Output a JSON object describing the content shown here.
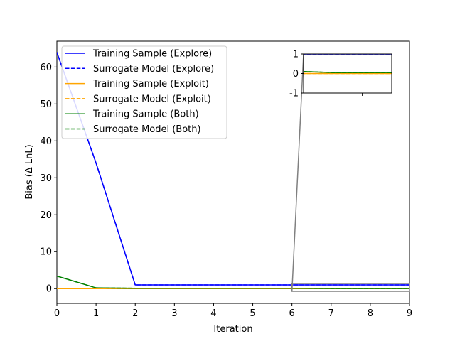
{
  "chart_data": {
    "type": "line",
    "title": "",
    "xlabel": "Iteration",
    "ylabel": "Bias (Δ LnL)",
    "xlim": [
      0,
      9
    ],
    "ylim": [
      -4,
      67
    ],
    "xticks": [
      0,
      1,
      2,
      3,
      4,
      5,
      6,
      7,
      8,
      9
    ],
    "yticks": [
      0,
      10,
      20,
      30,
      40,
      50,
      60
    ],
    "legend_position": "top-left",
    "x": [
      0,
      1,
      2,
      3,
      4,
      5,
      6,
      7,
      8,
      9
    ],
    "series": [
      {
        "name": "Training Sample (Explore)",
        "color": "#0000ff",
        "style": "solid",
        "values": [
          64,
          34,
          1,
          1,
          1,
          1,
          1,
          1,
          1,
          1
        ]
      },
      {
        "name": "Surrogate Model (Explore)",
        "color": "#0000ff",
        "style": "dashed",
        "values": [
          64,
          34,
          1,
          1,
          1,
          1,
          1,
          1,
          1,
          1
        ]
      },
      {
        "name": "Training Sample (Exploit)",
        "color": "#ffa500",
        "style": "solid",
        "values": [
          0,
          0,
          0,
          0,
          0,
          0,
          0,
          0,
          0,
          0
        ]
      },
      {
        "name": "Surrogate Model (Exploit)",
        "color": "#ffa500",
        "style": "dashed",
        "values": [
          0,
          0,
          0,
          0,
          0,
          0,
          0,
          0,
          0,
          0
        ]
      },
      {
        "name": "Training Sample (Both)",
        "color": "#008000",
        "style": "solid",
        "values": [
          3.4,
          0.2,
          0.1,
          0.1,
          0.1,
          0.1,
          0.1,
          0.05,
          0.05,
          0.05
        ]
      },
      {
        "name": "Surrogate Model (Both)",
        "color": "#008000",
        "style": "dashed",
        "values": [
          3.4,
          0.2,
          0.1,
          0.1,
          0.1,
          0.1,
          0.1,
          0.05,
          0.05,
          0.05
        ]
      }
    ],
    "inset": {
      "xlim": [
        6,
        9
      ],
      "ylim": [
        -1,
        1
      ],
      "yticks": [
        -1,
        0,
        1
      ],
      "xticks": [
        8
      ]
    }
  }
}
